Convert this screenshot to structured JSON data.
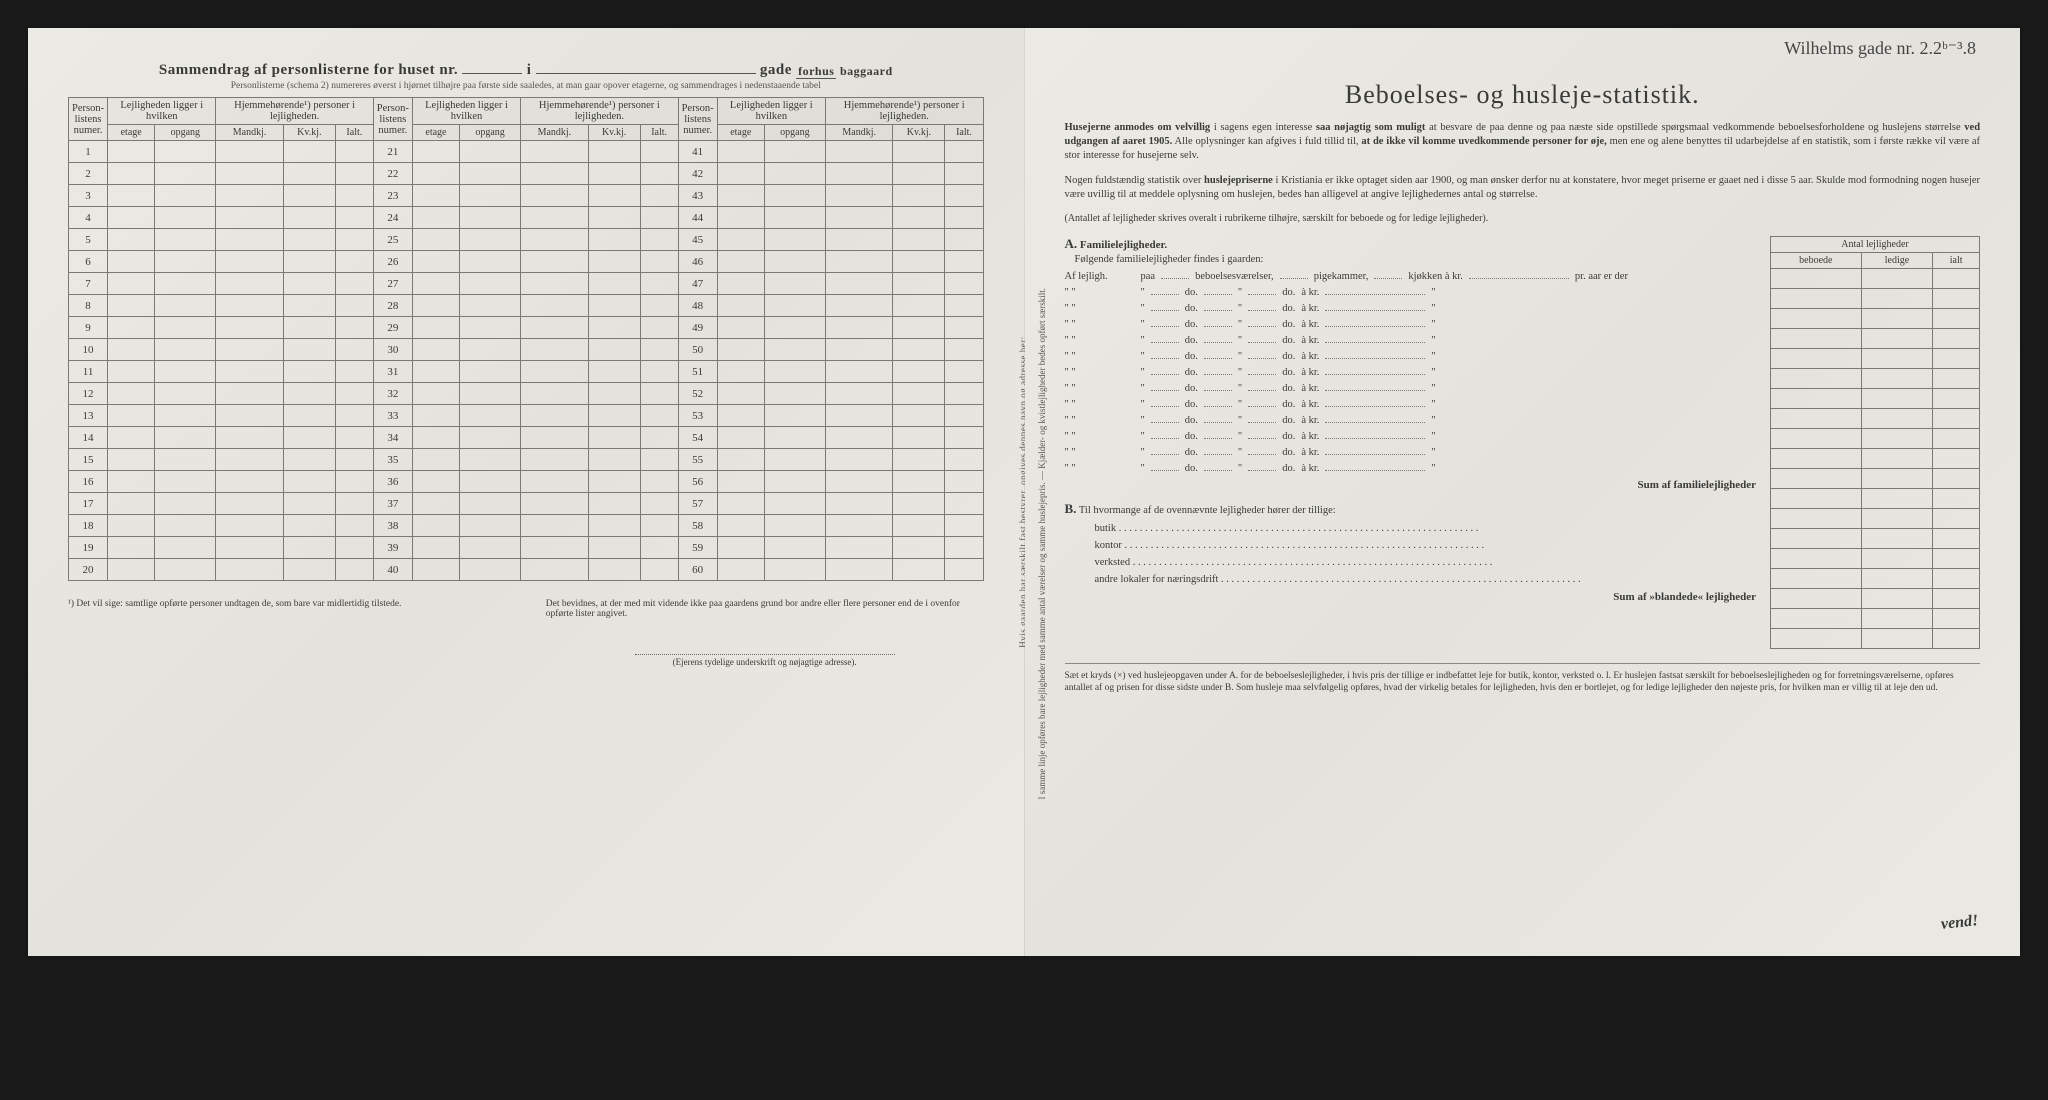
{
  "background_color": "#1a1a1a",
  "paper_color": "#e8e6e0",
  "left": {
    "title_prefix": "Sammendrag af personlisterne for huset nr.",
    "title_mid": "i",
    "title_suffix": "gade",
    "frac_top": "forhus",
    "frac_bot": "baggaard",
    "subnote": "Personlisterne (schema 2) numereres øverst i hjørnet tilhøjre paa første side saaledes, at man gaar opover etagerne, og sammendrages i nedenstaaende tabel",
    "headers": {
      "num": "Person-listens numer.",
      "ligger": "Lejligheden ligger i hvilken",
      "soner": "Hjemmehørende¹) personer i lejligheden.",
      "etage": "etage",
      "opgang": "opgang",
      "mand": "Mandkj.",
      "kv": "Kv.kj.",
      "ialt": "Ialt."
    },
    "rows_a": [
      1,
      2,
      3,
      4,
      5,
      6,
      7,
      8,
      9,
      10,
      11,
      12,
      13,
      14,
      15,
      16,
      17,
      18,
      19,
      20
    ],
    "rows_b": [
      21,
      22,
      23,
      24,
      25,
      26,
      27,
      28,
      29,
      30,
      31,
      32,
      33,
      34,
      35,
      36,
      37,
      38,
      39,
      40
    ],
    "rows_c": [
      41,
      42,
      43,
      44,
      45,
      46,
      47,
      48,
      49,
      50,
      51,
      52,
      53,
      54,
      55,
      56,
      57,
      58,
      59,
      60
    ],
    "foot1": "¹) Det vil sige: samtlige opførte personer undtagen de, som bare var midlertidig tilstede.",
    "foot2": "Det bevidnes, at der med mit vidende ikke paa gaardens grund bor andre eller flere personer end de i ovenfor opførte lister angivet.",
    "sig": "(Ejerens tydelige underskrift og nøjagtige adresse).",
    "gutter": "Hvis gaarden har særskilt fast bestyrer, opgives dennes navn og adresse her:"
  },
  "right": {
    "hand": "Wilhelms   gade nr. 2.2ᵇ⁻³.8",
    "title": "Beboelses- og husleje-statistik.",
    "intro1_a": "Husejerne anmodes om velvillig",
    "intro1_b": "i sagens egen interesse",
    "intro1_c": "saa nøjagtig som muligt",
    "intro1_d": "at besvare de paa denne og paa næste side opstillede spørgsmaal vedkommende beboelsesforholdene og huslejens størrelse",
    "intro1_e": "ved udgangen af aaret 1905.",
    "intro1_f": "Alle oplysninger kan afgives i fuld tillid til,",
    "intro1_g": "at de ikke vil komme uvedkommende personer for øje,",
    "intro1_h": "men ene og alene benyttes til udarbejdelse af en statistik, som i første række vil være af stor interesse for husejerne selv.",
    "intro2_a": "Nogen fuldstændig statistik over",
    "intro2_b": "huslejepriserne",
    "intro2_c": "i Kristiania er ikke optaget siden aar 1900, og man ønsker derfor nu at konstatere, hvor meget priserne er gaaet ned i disse 5 aar. Skulde mod formodning nogen husejer være uvillig til at meddele oplysning om huslejen, bedes han alligevel at angive lejlighedernes antal og størrelse.",
    "intro3": "(Antallet af lejligheder skrives overalt i rubrikerne tilhøjre, særskilt for beboede og for ledige lejligheder).",
    "A_label": "A.",
    "A_head": "Familielejligheder.",
    "A_sub": "Følgende familielejligheder findes i gaarden:",
    "row_lead_first": "Af lejligh.",
    "row_lead_rest": "\"     \"",
    "row_paa": "paa",
    "row_beb": "beboelsesværelser,",
    "row_pige": "pigekammer,",
    "row_kjok": "kjøkken à kr.",
    "row_praar": "pr. aar er der",
    "row_do": "do.",
    "row_akr": "à kr.",
    "row_count": 13,
    "sumA": "Sum af familielejligheder",
    "antal_head": "Antal lejligheder",
    "antal_cols": [
      "beboede",
      "ledige",
      "ialt"
    ],
    "B_label": "B.",
    "B_text": "Til hvormange af de ovennævnte lejligheder hører der tillige:",
    "B_items": [
      "butik",
      "kontor",
      "verksted",
      "andre lokaler for næringsdrift"
    ],
    "sumB": "Sum af »blandede« lejligheder",
    "footer": "Sæt et kryds (×) ved huslejeopgaven under A. for de beboelseslejligheder, i hvis pris der tillige er indbefattet leje for butik, kontor, verksted o. l. Er huslejen fastsat særskilt for beboelseslejligheden og for forretningsværelserne, opføres antallet af og prisen for disse sidste under B. Som husleje maa selvfølgelig opføres, hvad der virkelig betales for lejligheden, hvis den er bortlejet, og for ledige lejligheder den nøjeste pris, for hvilken man er villig til at leje den ud.",
    "vend": "vend!",
    "side_hint": "I samme linje opføres bare lejligheder med samme antal værelser og samme huslejepris. — Kjælder- og kvistlejligheder bedes opført særskilt."
  }
}
